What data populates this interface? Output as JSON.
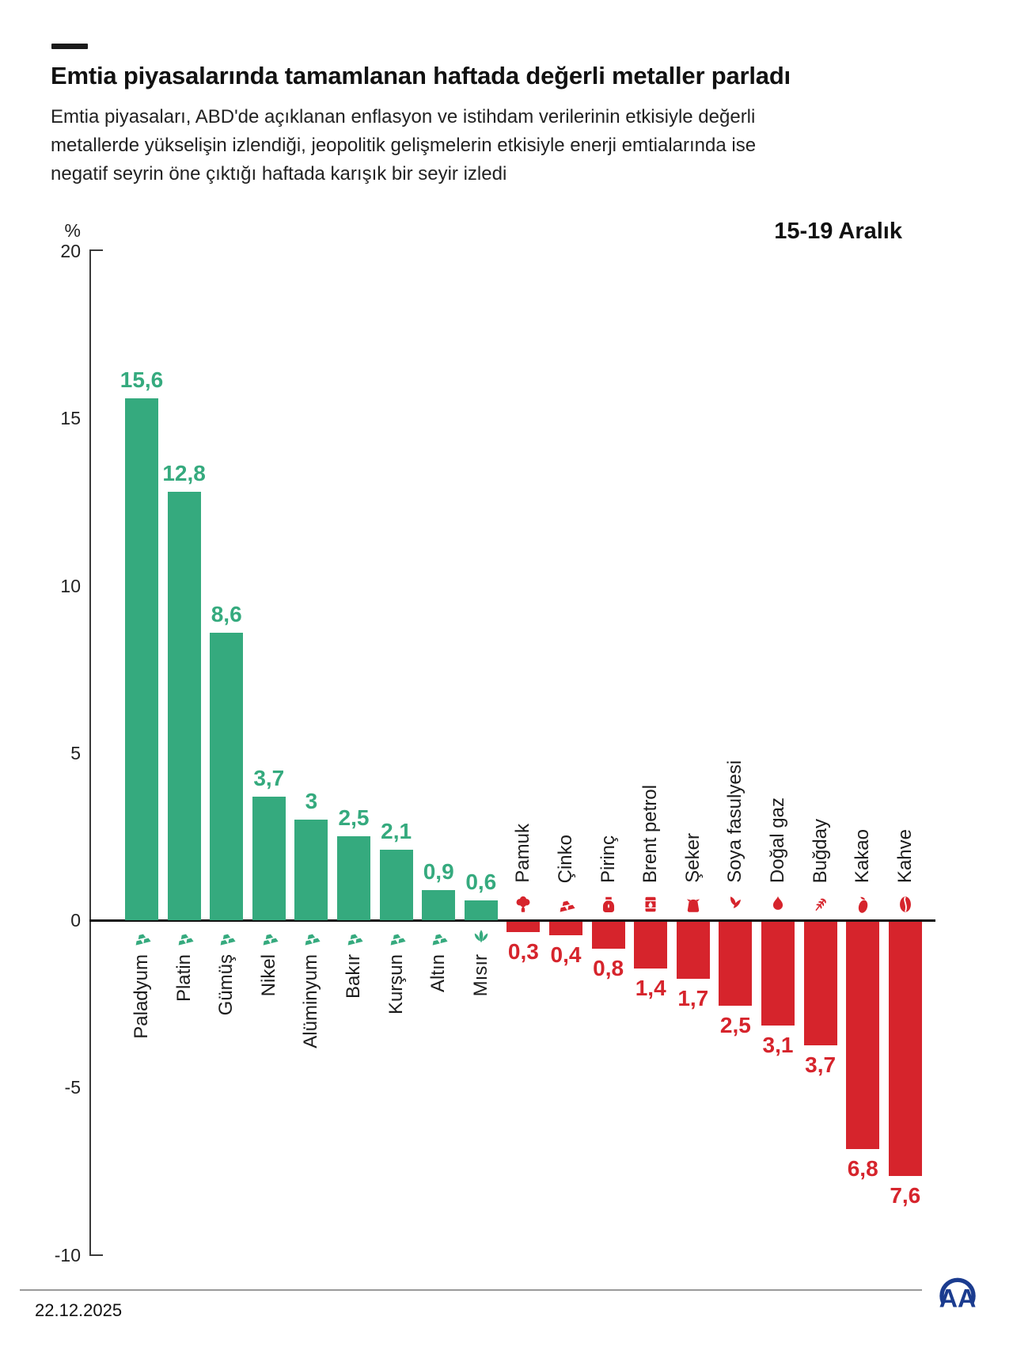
{
  "header": {
    "title": "Emtia piyasalarında tamamlanan haftada değerli metaller parladı",
    "subtitle": "Emtia piyasaları, ABD'de açıklanan enflasyon ve istihdam verilerinin etkisiyle değerli metallerde yükselişin izlendiği, jeopolitik gelişmelerin etkisiyle enerji emtialarında ise negatif seyrin öne çıktığı haftada karışık bir seyir izledi",
    "period_label": "15-19 Aralık"
  },
  "chart_data": {
    "type": "bar",
    "title": "Emtia piyasalarında tamamlanan haftada değerli metaller parladı",
    "xlabel": "",
    "ylabel": "%",
    "ylim": [
      -10,
      20
    ],
    "yticks": [
      20,
      15,
      10,
      5,
      0,
      -5,
      -10
    ],
    "ytick_labels": [
      "20",
      "15",
      "10",
      "5",
      "0",
      "-5",
      "-10"
    ],
    "grid": false,
    "legend_position": "none",
    "categories": [
      "Paladyum",
      "Platin",
      "Gümüş",
      "Nikel",
      "Alüminyum",
      "Bakır",
      "Kurşun",
      "Altın",
      "Mısır",
      "Pamuk",
      "Çinko",
      "Pirinç",
      "Brent petrol",
      "Şeker",
      "Soya fasulyesi",
      "Doğal gaz",
      "Buğday",
      "Kakao",
      "Kahve"
    ],
    "values": [
      15.6,
      12.8,
      8.6,
      3.7,
      3,
      2.5,
      2.1,
      0.9,
      0.6,
      -0.3,
      -0.4,
      -0.8,
      -1.4,
      -1.7,
      -2.5,
      -3.1,
      -3.7,
      -6.8,
      -7.6
    ],
    "value_labels": [
      "15,6",
      "12,8",
      "8,6",
      "3,7",
      "3",
      "2,5",
      "2,1",
      "0,9",
      "0,6",
      "0,3",
      "0,4",
      "0,8",
      "1,4",
      "1,7",
      "2,5",
      "3,1",
      "3,7",
      "6,8",
      "7,6"
    ],
    "icons": [
      "metal-ingots-icon",
      "metal-ingots-icon",
      "metal-ingots-icon",
      "metal-ingots-icon",
      "metal-ingots-icon",
      "metal-ingots-icon",
      "metal-ingots-icon",
      "metal-ingots-icon",
      "corn-icon",
      "cotton-icon",
      "metal-ingots-icon",
      "rice-sack-icon",
      "oil-barrel-icon",
      "sugar-sack-icon",
      "soybean-icon",
      "flame-icon",
      "wheat-icon",
      "cacao-icon",
      "coffee-bean-icon"
    ],
    "colors": {
      "positive": "#35aa7e",
      "negative": "#d6242c"
    }
  },
  "footer": {
    "date": "22.12.2025",
    "logo_text": "AA"
  }
}
